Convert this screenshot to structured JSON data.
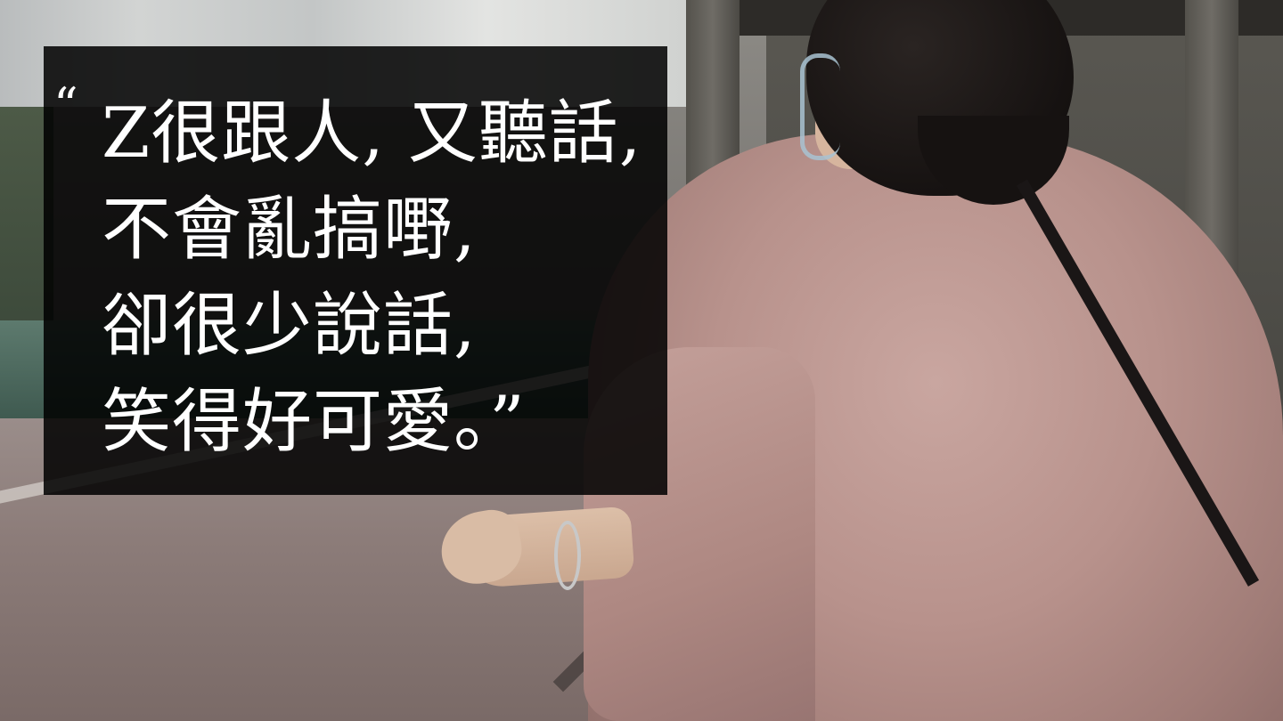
{
  "quote": {
    "open_mark": "“",
    "lines": [
      "Z很跟人, 又聽話,",
      "不會亂搞嘢,",
      "卻很少說話,",
      "笑得好可愛。”"
    ]
  },
  "colors": {
    "overlay": "#000000",
    "text": "#ffffff",
    "shirt": "#b8928c",
    "hair": "#161211"
  }
}
